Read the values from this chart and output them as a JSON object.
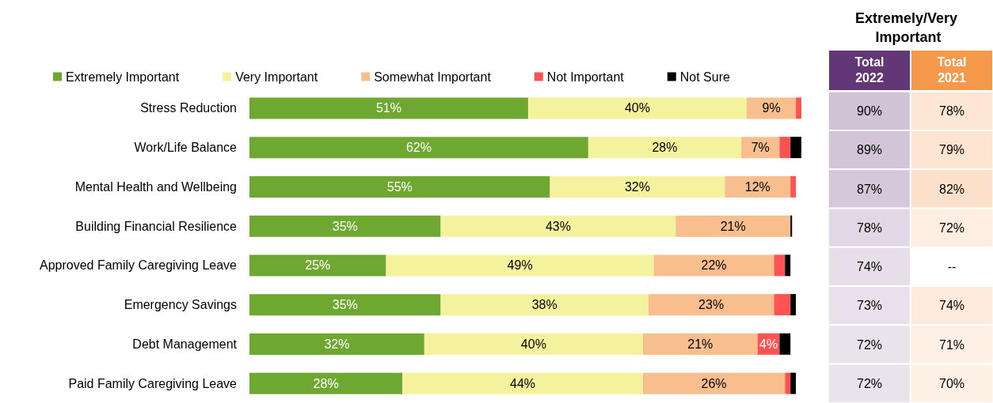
{
  "chart_data": [
    {
      "type": "bar",
      "orientation": "horizontal",
      "stacked": true,
      "legend": "top",
      "categories": [
        "Stress Reduction",
        "Work/Life Balance",
        "Mental Health and Wellbeing",
        "Building Financial Resilience",
        "Approved Family Caregiving Leave",
        "Emergency Savings",
        "Debt Management",
        "Paid Family Caregiving Leave"
      ],
      "series": [
        {
          "name": "Extremely Important",
          "color": "#6ea830",
          "values": [
            51,
            62,
            55,
            35,
            25,
            35,
            32,
            28
          ],
          "value_labels": [
            "51%",
            "62%",
            "55%",
            "35%",
            "25%",
            "35%",
            "32%",
            "28%"
          ]
        },
        {
          "name": "Very Important",
          "color": "#f5f29d",
          "values": [
            40,
            28,
            32,
            43,
            49,
            38,
            40,
            44
          ],
          "value_labels": [
            "40%",
            "28%",
            "32%",
            "43%",
            "49%",
            "38%",
            "40%",
            "44%"
          ]
        },
        {
          "name": "Somewhat Important",
          "color": "#f9be8e",
          "values": [
            9,
            7,
            12,
            21,
            22,
            23,
            21,
            26
          ],
          "value_labels": [
            "9%",
            "7%",
            "12%",
            "21%",
            "22%",
            "23%",
            "21%",
            "26%"
          ]
        },
        {
          "name": "Not Important",
          "color": "#ff5252",
          "values": [
            1,
            2,
            1,
            null,
            2,
            3,
            4,
            1
          ],
          "value_labels": [
            null,
            null,
            null,
            null,
            null,
            null,
            "4%",
            null
          ]
        },
        {
          "name": "Not Sure",
          "color": "#000000",
          "values": [
            null,
            2,
            null,
            0.3,
            1,
            1,
            2,
            1
          ]
        }
      ]
    },
    {
      "type": "heatmap",
      "title": "Extremely/Very Important",
      "categories": [
        "Total 2022",
        "Total 2021"
      ],
      "y_categories": [
        null,
        null,
        null,
        null,
        null,
        null,
        null,
        null
      ],
      "cells": [
        [
          90,
          78
        ],
        [
          89,
          79
        ],
        [
          87,
          82
        ],
        [
          78,
          72
        ],
        [
          74,
          null
        ],
        [
          73,
          74
        ],
        [
          72,
          71
        ],
        [
          72,
          70
        ]
      ],
      "cell_labels": [
        [
          "90%",
          "78%"
        ],
        [
          "89%",
          "79%"
        ],
        [
          "87%",
          "82%"
        ],
        [
          "78%",
          "72%"
        ],
        [
          "74%",
          "--"
        ],
        [
          "73%",
          "74%"
        ],
        [
          "72%",
          "71%"
        ],
        [
          "72%",
          "70%"
        ]
      ],
      "colors": [
        "#633677",
        "#f7994a"
      ]
    }
  ]
}
